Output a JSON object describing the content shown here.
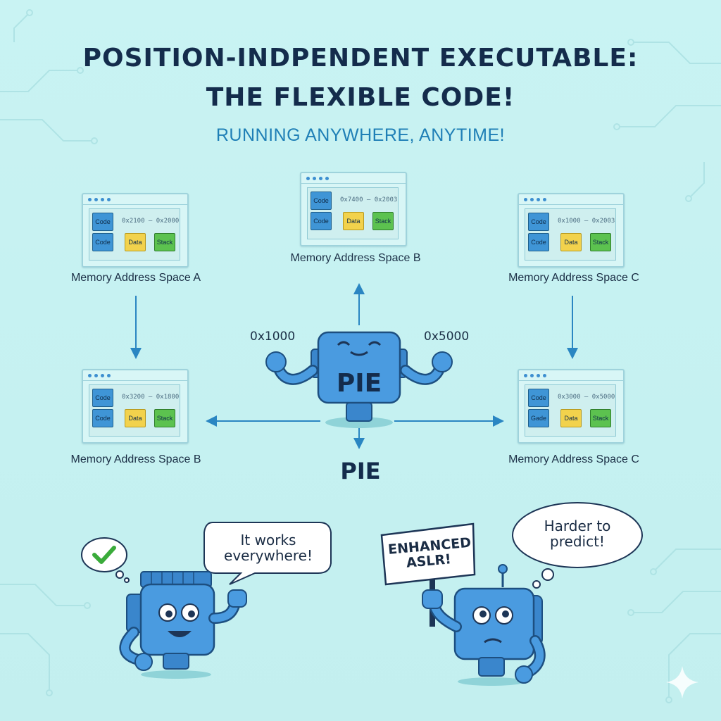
{
  "title_line1": "POSITION-INDPENDENT EXECUTABLE:",
  "title_line2": "THE FLEXIBLE CODE!",
  "subtitle": "RUNNING ANYWHERE, ANYTIME!",
  "windows": [
    {
      "id": "top-left",
      "label": "Memory Address Space A",
      "range": "0x2100 — 0x2000",
      "blocks": [
        "Code",
        "Code",
        "Data",
        "Stack"
      ]
    },
    {
      "id": "top-center",
      "label": "Memory Address Space B",
      "range": "0x7400 — 0x2003",
      "blocks": [
        "Code",
        "Code",
        "Data",
        "Stack"
      ]
    },
    {
      "id": "top-right",
      "label": "Memory Address Space C",
      "range": "0x1000 — 0x2003",
      "blocks": [
        "Code",
        "Code",
        "Data",
        "Stack"
      ]
    },
    {
      "id": "bottom-left",
      "label": "Memory Address Space B",
      "range": "0x3200 — 0x1800",
      "blocks": [
        "Code",
        "Code",
        "Data",
        "Stack"
      ]
    },
    {
      "id": "bottom-right",
      "label": "Memory Address Space C",
      "range": "0x3000 — 0x5000",
      "blocks": [
        "Code",
        "Gade",
        "Data",
        "Stack"
      ]
    }
  ],
  "center_robot_label": "PIE",
  "hex_left": "0x1000",
  "hex_right": "0x5000",
  "pie_caption": "PIE",
  "bubble_left": "It works everywhere!",
  "bubble_right": "Harder to predict!",
  "sign_text": "ENHANCED ASLR!",
  "colors": {
    "code": "#3f95d6",
    "data": "#f2d24c",
    "stack": "#5cc24f",
    "robot": "#4a9be0",
    "title": "#142c4c",
    "subtitle": "#1f7fb6"
  },
  "icons": [
    "checkmark-icon",
    "robot-icon"
  ]
}
